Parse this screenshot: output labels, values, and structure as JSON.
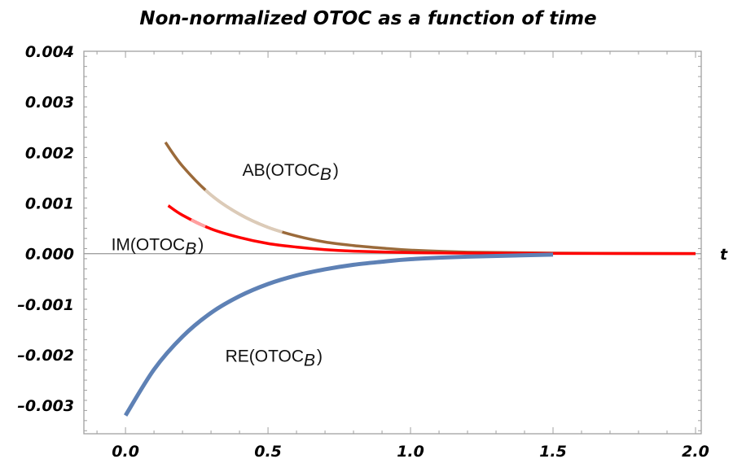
{
  "chart_data": {
    "type": "line",
    "title": "Non-normalized OTOC as a function of time",
    "xlabel": "t",
    "ylabel": "",
    "xlim": [
      -0.146,
      2.02
    ],
    "ylim": [
      -0.00356,
      0.004
    ],
    "grid": false,
    "x_ticks": [
      0.0,
      0.5,
      1.0,
      1.5,
      2.0
    ],
    "x_tick_labels": [
      "0.0",
      "0.5",
      "1.0",
      "1.5",
      "2.0"
    ],
    "y_ticks": [
      -0.003,
      -0.002,
      -0.001,
      0.0,
      0.001,
      0.002,
      0.003,
      0.004
    ],
    "y_tick_labels": [
      "-0.003",
      "-0.002",
      "-0.001",
      "0.000",
      "0.001",
      "0.002",
      "0.003",
      "0.004"
    ],
    "series": [
      {
        "name": "AB(OTOC_B)",
        "label_main": "AB(OTOC",
        "label_sub": "B",
        "label_close": ")",
        "label_at": [
          0.41,
          0.00165
        ],
        "color": "#9b6a3a",
        "faded_color": "#dccbb8",
        "faded_range": [
          0.28,
          0.55
        ],
        "x": [
          0.14,
          0.2,
          0.3,
          0.4,
          0.5,
          0.6,
          0.7,
          0.8,
          0.9,
          1.0,
          1.2,
          1.5,
          2.0
        ],
        "y": [
          0.0022,
          0.00173,
          0.00116,
          0.00078,
          0.00052,
          0.00035,
          0.00023,
          0.00016,
          0.00011,
          7e-05,
          3e-05,
          1e-05,
          0.0
        ]
      },
      {
        "name": "IM(OTOC_B)",
        "label_main": "IM(OTOC",
        "label_sub": "B",
        "label_close": ")",
        "label_at": [
          -0.05,
          0.00018
        ],
        "color": "#ff0000",
        "faded_color": "#ffa0a0",
        "faded_range": [
          0.23,
          0.28
        ],
        "x": [
          0.15,
          0.2,
          0.3,
          0.4,
          0.5,
          0.6,
          0.7,
          0.8,
          1.0,
          1.2,
          1.5,
          2.0
        ],
        "y": [
          0.00095,
          0.00076,
          0.00049,
          0.00032,
          0.0002,
          0.00013,
          8e-05,
          5e-05,
          2e-05,
          1e-05,
          5e-06,
          0.0
        ]
      },
      {
        "name": "RE(OTOC_B)",
        "label_main": "RE(OTOC",
        "label_sub": "B",
        "label_close": ")",
        "label_at": [
          0.35,
          -0.00202
        ],
        "color": "#5e81b5",
        "x": [
          0.0,
          0.1,
          0.2,
          0.3,
          0.4,
          0.5,
          0.6,
          0.7,
          0.8,
          0.9,
          1.0,
          1.2,
          1.5
        ],
        "y": [
          -0.0032,
          -0.00229,
          -0.00164,
          -0.00117,
          -0.00084,
          -0.0006,
          -0.00043,
          -0.00031,
          -0.00022,
          -0.00016,
          -0.00011,
          -6e-05,
          -2e-05
        ]
      }
    ]
  }
}
